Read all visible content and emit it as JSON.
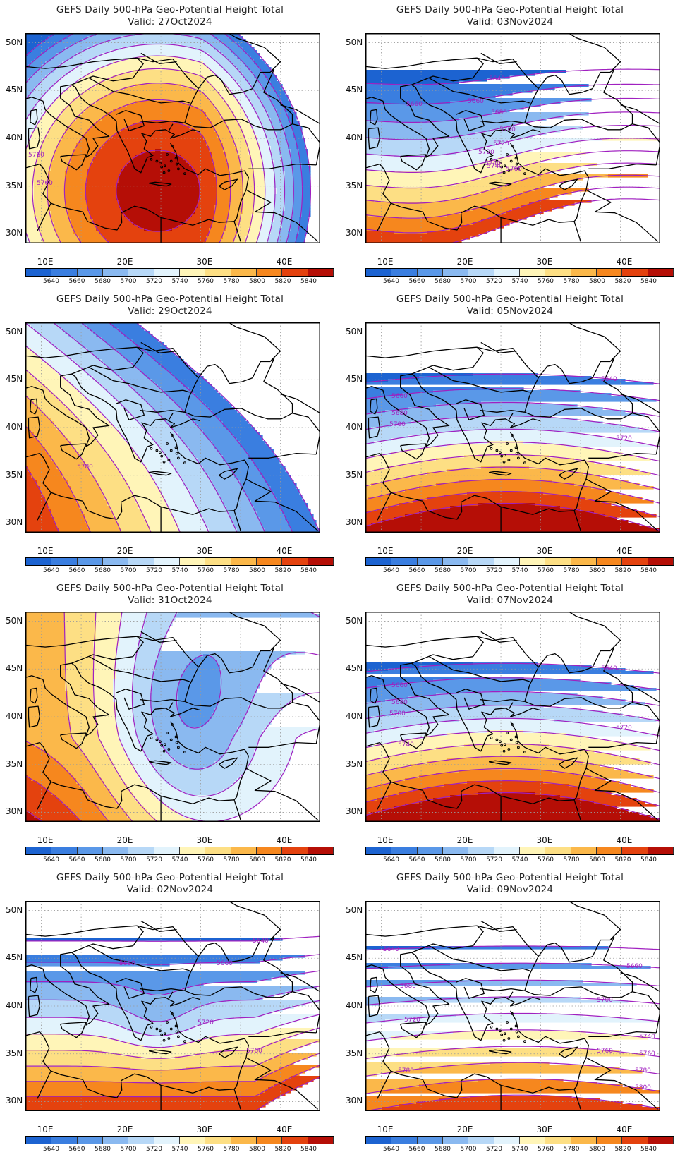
{
  "legend": {
    "levels": [
      "5640",
      "5660",
      "5680",
      "5700",
      "5720",
      "5740",
      "5760",
      "5780",
      "5800",
      "5820",
      "5840"
    ],
    "colors": [
      "#1c63d1",
      "#3a7ee0",
      "#5a98e8",
      "#8ab9f0",
      "#b7d8f7",
      "#e2f3fc",
      "#fff5b8",
      "#fddf84",
      "#fbb84a",
      "#f6871e",
      "#e4420e",
      "#b50e06"
    ]
  },
  "axes": {
    "lat_labels": [
      "50N",
      "45N",
      "40N",
      "35N",
      "30N"
    ],
    "lon_labels": [
      "10E",
      "20E",
      "30E",
      "40E"
    ]
  },
  "contour_color": "#a020c0",
  "panels": [
    {
      "title": "GEFS Daily 500-hPa Geo-Potential Height Total",
      "valid": "Valid: 27Oct2024",
      "pattern": "ridge",
      "labels": [
        "5760",
        "5760"
      ]
    },
    {
      "title": "GEFS Daily 500-hPa Geo-Potential Height Total",
      "valid": "Valid: 03Nov2024",
      "pattern": "zonal-deep",
      "labels": [
        "5640",
        "5660",
        "5660",
        "5680",
        "5700",
        "5720",
        "5720",
        "5740",
        "5740",
        "5760"
      ]
    },
    {
      "title": "GEFS Daily 500-hPa Geo-Potential Height Total",
      "valid": "Valid: 29Oct2024",
      "pattern": "sw-ridge",
      "labels": [
        "5780"
      ]
    },
    {
      "title": "GEFS Daily 500-hPa Geo-Potential Height Total",
      "valid": "Valid: 05Nov2024",
      "pattern": "zonal",
      "labels": [
        "5640",
        "5660",
        "5680",
        "5700",
        "5720"
      ]
    },
    {
      "title": "GEFS Daily 500-hPa Geo-Potential Height Total",
      "valid": "Valid: 31Oct2024",
      "pattern": "trough",
      "labels": []
    },
    {
      "title": "GEFS Daily 500-hPa Geo-Potential Height Total",
      "valid": "Valid: 07Nov2024",
      "pattern": "zonal",
      "labels": [
        "5640",
        "5660",
        "5680",
        "5700",
        "5720",
        "5740"
      ]
    },
    {
      "title": "GEFS Daily 500-hPa Geo-Potential Height Total",
      "valid": "Valid: 02Nov2024",
      "pattern": "cutoff",
      "labels": [
        "5640",
        "5660",
        "5660",
        "5720",
        "5760"
      ]
    },
    {
      "title": "GEFS Daily 500-hPa Geo-Potential Height Total",
      "valid": "Valid: 09Nov2024",
      "pattern": "zonal-south",
      "labels": [
        "5640",
        "5660",
        "5680",
        "5700",
        "5720",
        "5740",
        "5760",
        "5780",
        "5760",
        "5780",
        "5800"
      ]
    }
  ]
}
